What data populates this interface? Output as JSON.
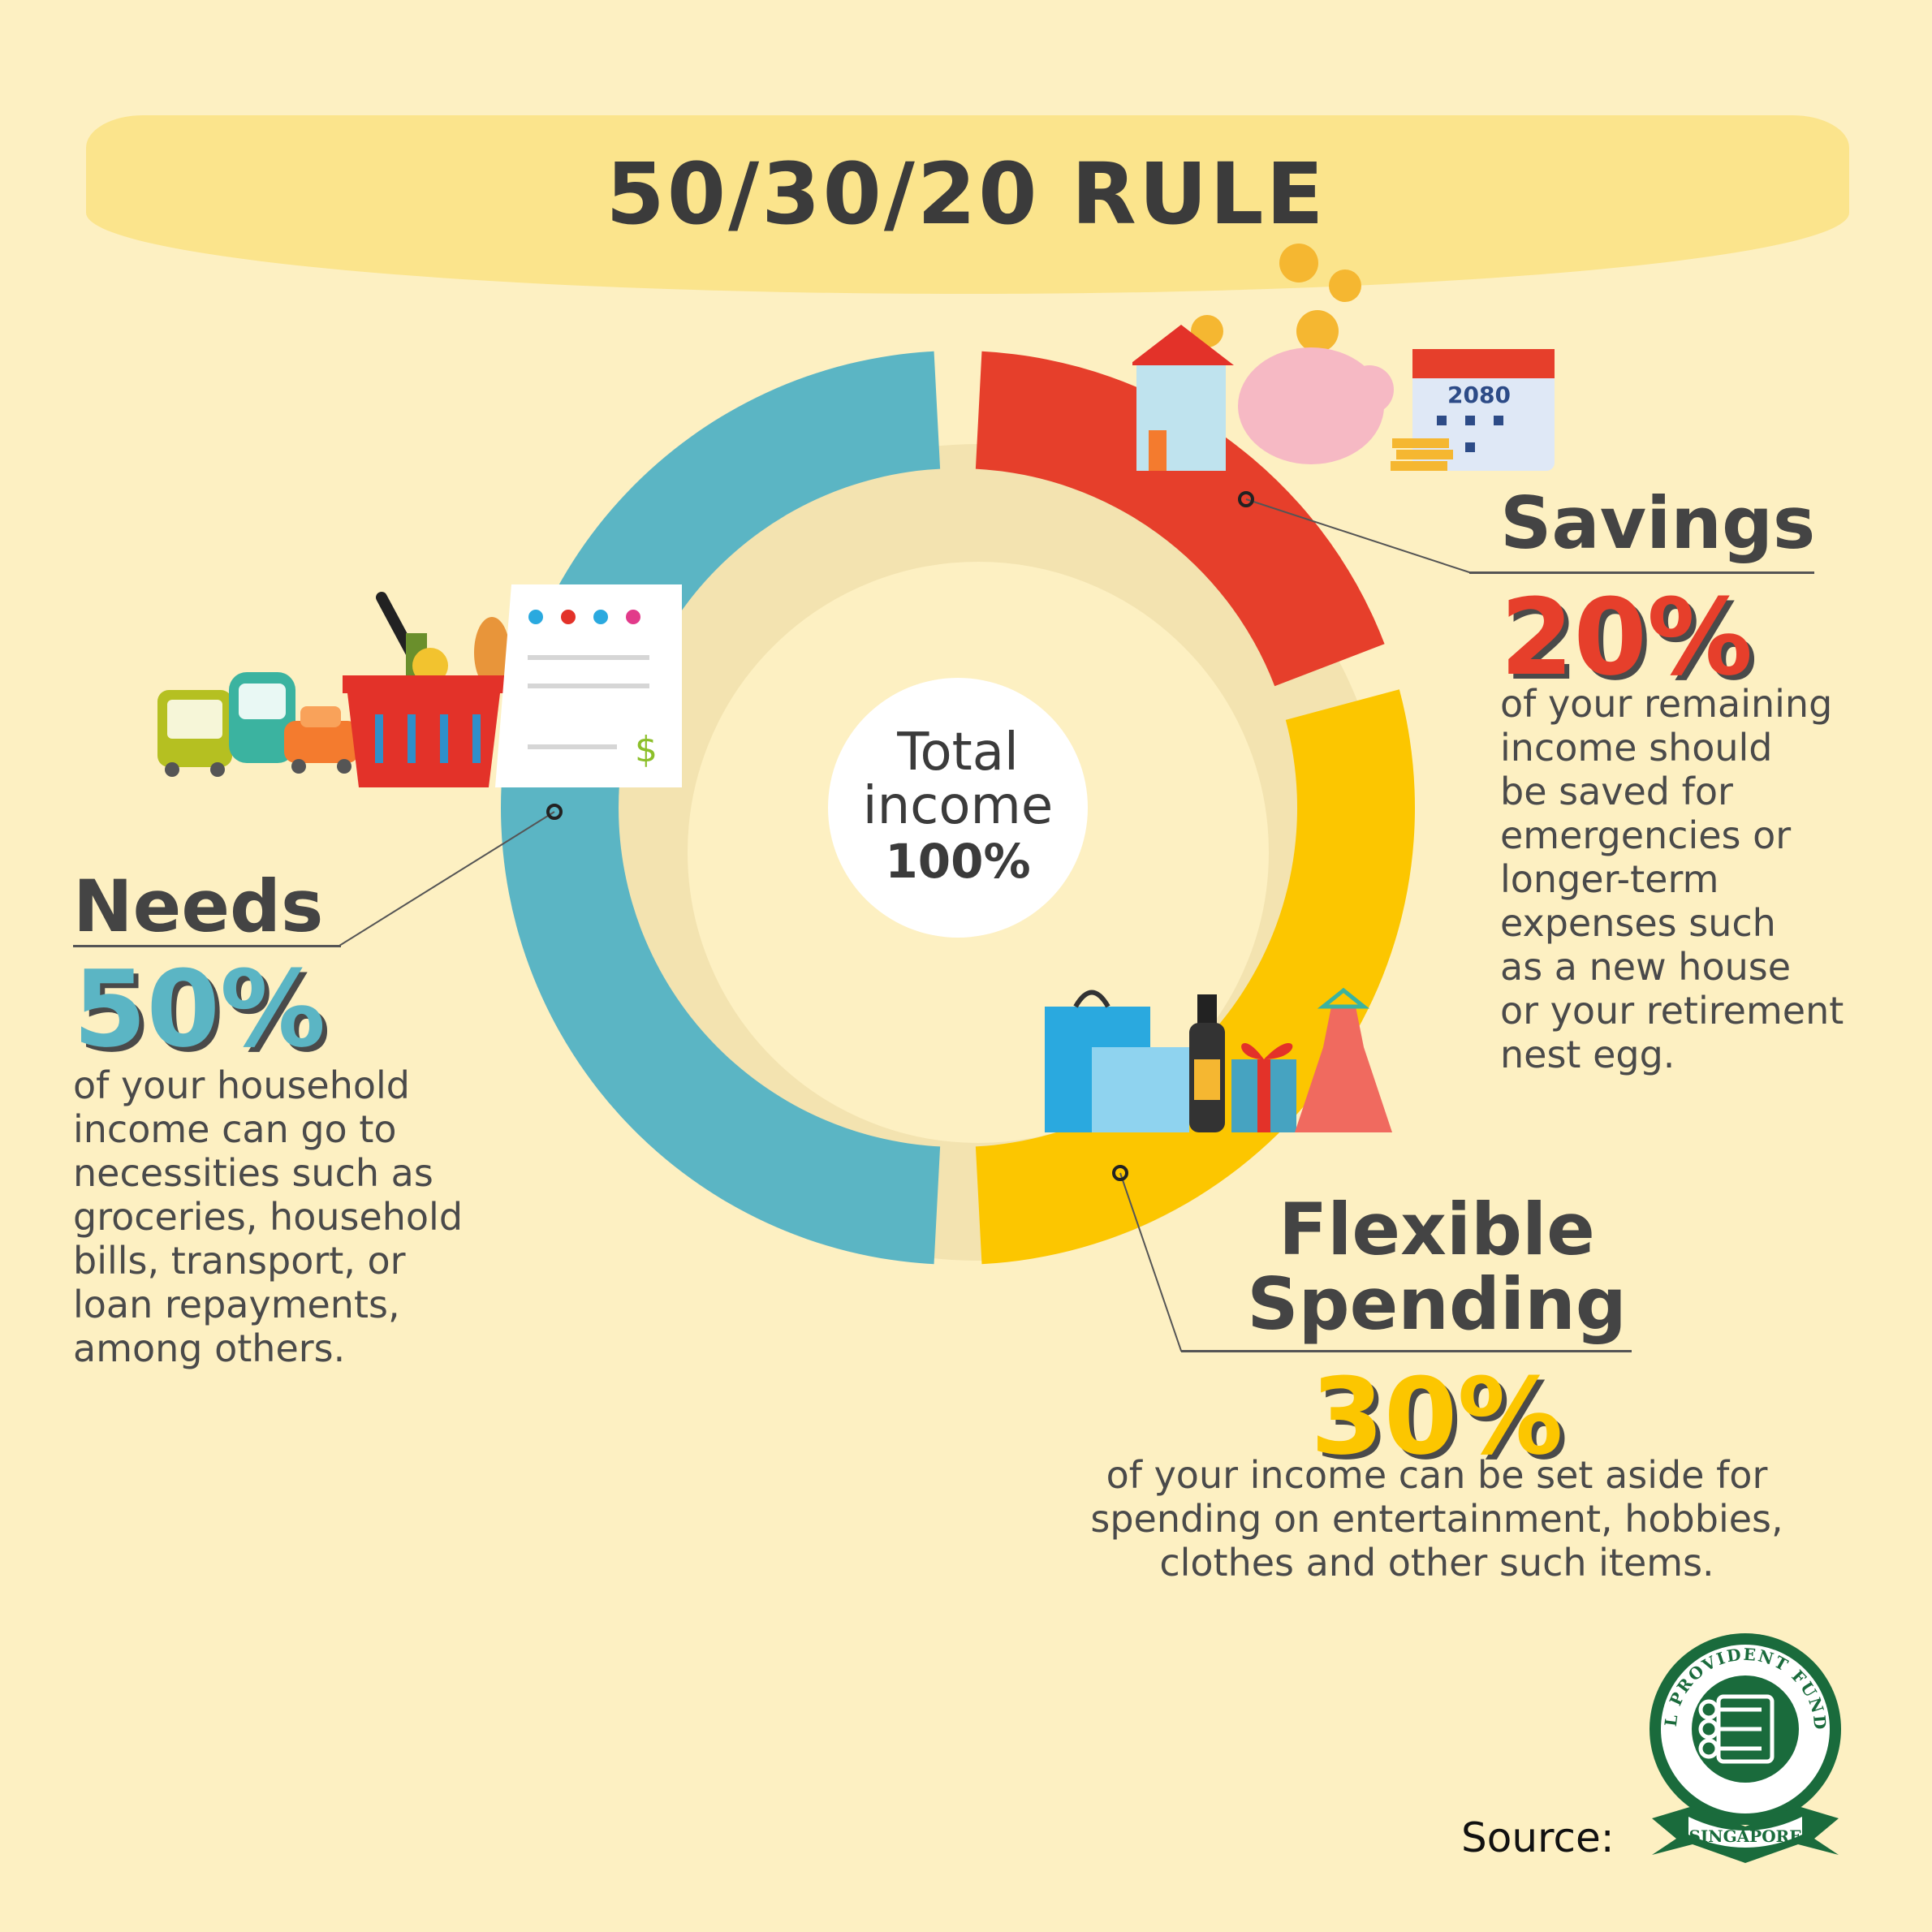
{
  "title": "50/30/20 RULE",
  "center": {
    "line1": "Total",
    "line2": "income",
    "line3": "100%"
  },
  "chart_data": {
    "type": "pie",
    "title": "50/30/20 RULE",
    "total_label": "Total income 100%",
    "slices": [
      {
        "label": "Savings",
        "value": 20,
        "color": "#e63f2b"
      },
      {
        "label": "Flexible Spending",
        "value": 30,
        "color": "#fcc600"
      },
      {
        "label": "Needs",
        "value": 50,
        "color": "#5bb5c4"
      }
    ]
  },
  "needs": {
    "heading": "Needs",
    "percent": "50%",
    "lines": [
      "of your household",
      "income can go to",
      "necessities such as",
      "groceries, household",
      "bills, transport, or",
      "loan repayments,",
      "among others."
    ]
  },
  "savings": {
    "heading": "Savings",
    "percent": "20%",
    "lines": [
      "of your remaining",
      "income should",
      "be saved for",
      "emergencies or",
      "longer-term",
      "expenses such",
      "as a new house",
      "or your retirement",
      "nest egg."
    ]
  },
  "flexible": {
    "heading_line1": "Flexible",
    "heading_line2": "Spending",
    "percent": "30%",
    "lines": [
      "of your income can be set aside for",
      "spending on entertainment, hobbies,",
      "clothes and other such items."
    ]
  },
  "calendar_year": "2080",
  "bill_symbol": "$",
  "source_label": "Source:",
  "seal": {
    "name": "CENTRAL PROVIDENT FUND BOARD",
    "ribbon": "SINGAPORE"
  },
  "colors": {
    "needs": "#5bb5c4",
    "savings": "#e63f2b",
    "flexible": "#fcc600",
    "background": "#fdf0c2",
    "seal": "#1a6b3c"
  }
}
